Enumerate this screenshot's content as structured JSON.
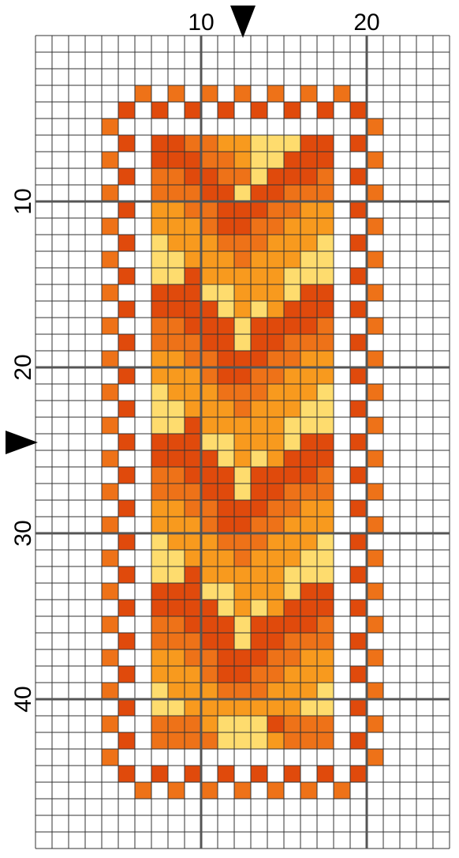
{
  "chart_data": {
    "type": "heatmap",
    "grid": {
      "columns": 25,
      "rows": 49
    },
    "major_line_every": 10,
    "column_labels": [
      "10",
      "20"
    ],
    "row_labels": [
      "10",
      "20",
      "30",
      "40"
    ],
    "center_markers": {
      "column": 13,
      "row": 25
    },
    "palette": {
      "1": "#e04a0c",
      "2": "#ee7218",
      "3": "#f89a1e",
      "4": "#fedc6e",
      "grid": "#333333",
      "major_grid": "#555555",
      "background": "#ffffff"
    },
    "border_top_rows": [
      {
        "row": 4,
        "color": 2,
        "cols": [
          7,
          9,
          11,
          13,
          15,
          17,
          19
        ]
      },
      {
        "row": 5,
        "color": 1,
        "cols": [
          6,
          8,
          10,
          12,
          14,
          16,
          18,
          20
        ]
      }
    ],
    "border_bottom_rows": [
      {
        "row": 45,
        "color": 1,
        "cols": [
          6,
          8,
          10,
          12,
          14,
          16,
          18,
          20
        ]
      },
      {
        "row": 46,
        "color": 2,
        "cols": [
          7,
          9,
          11,
          13,
          15,
          17,
          19
        ]
      }
    ],
    "border_sides": {
      "row_start": 6,
      "row_end": 44,
      "outer_cols": [
        5,
        21
      ],
      "outer_color": 2,
      "inner_cols": [
        6,
        20
      ],
      "inner_color": 1
    },
    "design_block": {
      "row_start": 7,
      "col_start": 8,
      "rows": [
        "11223344411",
        "11122344111",
        "22112241112",
        "22211411222",
        "33221112233",
        "33321122333",
        "43332223334",
        "44333233344",
        "44133333444",
        "11144333411",
        "11114343111",
        "22111411112",
        "22211411222",
        "33221112233",
        "33321122333",
        "43332223334",
        "44333233344",
        "44133333444",
        "11144333411",
        "11114343111",
        "22111411112",
        "22211411222",
        "33221112233",
        "33321122333",
        "43332223334",
        "44333233344",
        "44133333444",
        "11144333411",
        "11114343111",
        "22111411112",
        "22211411222",
        "33221112233",
        "33321122333",
        "43332223334",
        "44333333344",
        "22234441222",
        "22224443222"
      ]
    }
  }
}
